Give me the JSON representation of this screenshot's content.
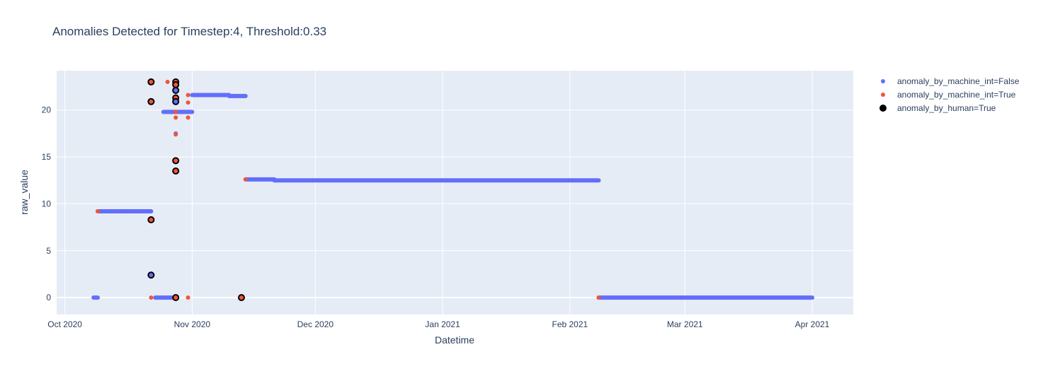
{
  "chart_data": {
    "type": "scatter",
    "title": "Anomalies Detected for Timestep:4, Threshold:0.33",
    "xlabel": "Datetime",
    "ylabel": "raw_value",
    "xlim": [
      "2020-09-29",
      "2021-04-11"
    ],
    "ylim": [
      -1.8,
      24.2
    ],
    "x_ticks": [
      {
        "date": "2020-10-01",
        "label": "Oct 2020"
      },
      {
        "date": "2020-11-01",
        "label": "Nov 2020"
      },
      {
        "date": "2020-12-01",
        "label": "Dec 2020"
      },
      {
        "date": "2021-01-01",
        "label": "Jan 2021"
      },
      {
        "date": "2021-02-01",
        "label": "Feb 2021"
      },
      {
        "date": "2021-03-01",
        "label": "Mar 2021"
      },
      {
        "date": "2021-04-01",
        "label": "Apr 2021"
      }
    ],
    "y_ticks": [
      0,
      5,
      10,
      15,
      20
    ],
    "grid": true,
    "legend_position": "top-right",
    "background": "#e5ecf6",
    "series": [
      {
        "name": "anomaly_by_machine_int=False",
        "color": "#636efa",
        "segments": [
          {
            "x_start": "2020-10-08",
            "x_end": "2020-10-09",
            "y": 0
          },
          {
            "x_start": "2020-10-09",
            "x_end": "2020-10-16",
            "y": 9.2
          },
          {
            "x_start": "2020-10-16",
            "x_end": "2020-10-22",
            "y": 9.2
          },
          {
            "x_start": "2020-10-23",
            "x_end": "2020-10-27",
            "y": 0
          },
          {
            "x_start": "2020-10-25",
            "x_end": "2020-11-01",
            "y": 19.8
          },
          {
            "x_start": "2020-11-01",
            "x_end": "2020-11-10",
            "y": 21.6
          },
          {
            "x_start": "2020-11-10",
            "x_end": "2020-11-14",
            "y": 21.5
          },
          {
            "x_start": "2020-11-14",
            "x_end": "2020-11-21",
            "y": 12.6
          },
          {
            "x_start": "2020-11-21",
            "x_end": "2021-02-08",
            "y": 12.5
          },
          {
            "x_start": "2021-02-08",
            "x_end": "2021-04-01",
            "y": 0
          }
        ],
        "points": [
          {
            "x": "2020-10-28",
            "y": 17.5
          },
          {
            "x": "2020-10-28",
            "y": 22.1
          },
          {
            "x": "2020-10-28",
            "y": 20.9
          },
          {
            "x": "2020-10-22",
            "y": 2.4
          }
        ]
      },
      {
        "name": "anomaly_by_machine_int=True",
        "color": "#ef553b",
        "points": [
          {
            "x": "2020-10-22",
            "y": 23.0
          },
          {
            "x": "2020-10-22",
            "y": 20.9
          },
          {
            "x": "2020-10-22",
            "y": 8.3
          },
          {
            "x": "2020-10-22",
            "y": 0
          },
          {
            "x": "2020-10-26",
            "y": 23.0
          },
          {
            "x": "2020-10-28",
            "y": 23.0
          },
          {
            "x": "2020-10-28",
            "y": 22.7
          },
          {
            "x": "2020-10-28",
            "y": 22.4
          },
          {
            "x": "2020-10-28",
            "y": 21.3
          },
          {
            "x": "2020-10-28",
            "y": 19.8
          },
          {
            "x": "2020-10-28",
            "y": 19.2
          },
          {
            "x": "2020-10-28",
            "y": 17.4
          },
          {
            "x": "2020-10-28",
            "y": 14.6
          },
          {
            "x": "2020-10-28",
            "y": 13.5
          },
          {
            "x": "2020-10-28",
            "y": 0
          },
          {
            "x": "2020-10-31",
            "y": 21.6
          },
          {
            "x": "2020-10-31",
            "y": 20.8
          },
          {
            "x": "2020-10-31",
            "y": 19.2
          },
          {
            "x": "2020-10-31",
            "y": 0
          },
          {
            "x": "2020-10-09",
            "y": 9.2
          },
          {
            "x": "2020-11-13",
            "y": 0
          },
          {
            "x": "2020-11-14",
            "y": 12.6
          },
          {
            "x": "2021-02-08",
            "y": 0
          }
        ]
      },
      {
        "name": "anomaly_by_human=True",
        "color": "#000000",
        "points": [
          {
            "x": "2020-10-22",
            "y": 23.0,
            "fill": "#ef553b"
          },
          {
            "x": "2020-10-22",
            "y": 20.9,
            "fill": "#ef553b"
          },
          {
            "x": "2020-10-22",
            "y": 8.3,
            "fill": "#ef553b"
          },
          {
            "x": "2020-10-22",
            "y": 2.4,
            "fill": "#636efa"
          },
          {
            "x": "2020-10-28",
            "y": 23.0,
            "fill": "#ef553b"
          },
          {
            "x": "2020-10-28",
            "y": 22.7,
            "fill": "#ef553b"
          },
          {
            "x": "2020-10-28",
            "y": 22.1,
            "fill": "#636efa"
          },
          {
            "x": "2020-10-28",
            "y": 21.3,
            "fill": "#ef553b"
          },
          {
            "x": "2020-10-28",
            "y": 20.9,
            "fill": "#636efa"
          },
          {
            "x": "2020-10-28",
            "y": 14.6,
            "fill": "#ef553b"
          },
          {
            "x": "2020-10-28",
            "y": 13.5,
            "fill": "#ef553b"
          },
          {
            "x": "2020-10-28",
            "y": 0,
            "fill": "#ef553b"
          },
          {
            "x": "2020-11-13",
            "y": 0,
            "fill": "#ef553b"
          }
        ]
      }
    ]
  }
}
